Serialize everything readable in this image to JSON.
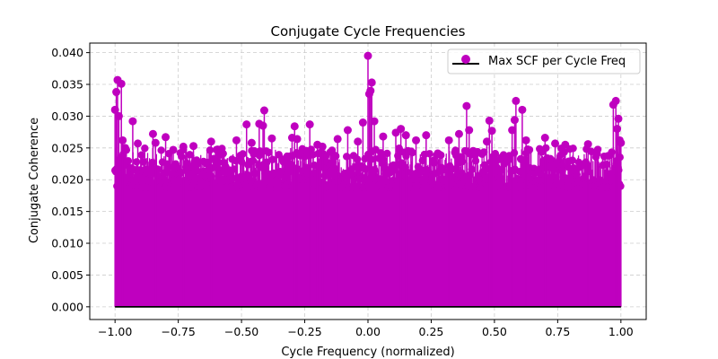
{
  "chart_data": {
    "type": "stem",
    "title": "Conjugate Cycle Frequencies",
    "xlabel": "Cycle Frequency (normalized)",
    "ylabel": "Conjugate Coherence",
    "xlim": [
      -1.1,
      1.1
    ],
    "ylim": [
      -0.002,
      0.0415
    ],
    "xticks": [
      -1.0,
      -0.75,
      -0.5,
      -0.25,
      0.0,
      0.25,
      0.5,
      0.75,
      1.0
    ],
    "xtick_labels": [
      "−1.00",
      "−0.75",
      "−0.50",
      "−0.25",
      "0.00",
      "0.25",
      "0.50",
      "0.75",
      "1.00"
    ],
    "yticks": [
      0.0,
      0.005,
      0.01,
      0.015,
      0.02,
      0.025,
      0.03,
      0.035,
      0.04
    ],
    "ytick_labels": [
      "0.000",
      "0.005",
      "0.010",
      "0.015",
      "0.020",
      "0.025",
      "0.030",
      "0.035",
      "0.040"
    ],
    "grid": true,
    "legend_position": "upper right",
    "series": [
      {
        "name": "Max SCF per Cycle Freq",
        "color": "#bf00bf",
        "baseline_color": "#000000",
        "density_note": "dense stems across full range, typical height 0.019–0.025",
        "peaks": [
          {
            "x": -1.0,
            "y": 0.031
          },
          {
            "x": -0.995,
            "y": 0.0338
          },
          {
            "x": -0.99,
            "y": 0.0357
          },
          {
            "x": -0.975,
            "y": 0.0351
          },
          {
            "x": -0.985,
            "y": 0.03
          },
          {
            "x": -0.97,
            "y": 0.0262
          },
          {
            "x": -0.96,
            "y": 0.025
          },
          {
            "x": -0.93,
            "y": 0.0292
          },
          {
            "x": -0.91,
            "y": 0.0257
          },
          {
            "x": -0.85,
            "y": 0.0272
          },
          {
            "x": -0.84,
            "y": 0.0258
          },
          {
            "x": -0.8,
            "y": 0.0267
          },
          {
            "x": -0.77,
            "y": 0.0247
          },
          {
            "x": -0.73,
            "y": 0.0252
          },
          {
            "x": -0.69,
            "y": 0.0253
          },
          {
            "x": -0.62,
            "y": 0.026
          },
          {
            "x": -0.59,
            "y": 0.0244
          },
          {
            "x": -0.52,
            "y": 0.0262
          },
          {
            "x": -0.48,
            "y": 0.0287
          },
          {
            "x": -0.46,
            "y": 0.0258
          },
          {
            "x": -0.43,
            "y": 0.0288
          },
          {
            "x": -0.415,
            "y": 0.0285
          },
          {
            "x": -0.41,
            "y": 0.0309
          },
          {
            "x": -0.38,
            "y": 0.0265
          },
          {
            "x": -0.3,
            "y": 0.0266
          },
          {
            "x": -0.29,
            "y": 0.0284
          },
          {
            "x": -0.28,
            "y": 0.0264
          },
          {
            "x": -0.23,
            "y": 0.0287
          },
          {
            "x": -0.2,
            "y": 0.0255
          },
          {
            "x": -0.18,
            "y": 0.0252
          },
          {
            "x": -0.12,
            "y": 0.0264
          },
          {
            "x": -0.08,
            "y": 0.0278
          },
          {
            "x": -0.04,
            "y": 0.026
          },
          {
            "x": -0.02,
            "y": 0.029
          },
          {
            "x": 0.0,
            "y": 0.0395
          },
          {
            "x": 0.005,
            "y": 0.0335
          },
          {
            "x": 0.01,
            "y": 0.034
          },
          {
            "x": 0.015,
            "y": 0.0353
          },
          {
            "x": 0.025,
            "y": 0.0292
          },
          {
            "x": 0.06,
            "y": 0.0268
          },
          {
            "x": 0.11,
            "y": 0.0274
          },
          {
            "x": 0.13,
            "y": 0.028
          },
          {
            "x": 0.15,
            "y": 0.027
          },
          {
            "x": 0.19,
            "y": 0.0262
          },
          {
            "x": 0.23,
            "y": 0.027
          },
          {
            "x": 0.32,
            "y": 0.0262
          },
          {
            "x": 0.36,
            "y": 0.0272
          },
          {
            "x": 0.39,
            "y": 0.0316
          },
          {
            "x": 0.4,
            "y": 0.0278
          },
          {
            "x": 0.47,
            "y": 0.026
          },
          {
            "x": 0.48,
            "y": 0.0293
          },
          {
            "x": 0.49,
            "y": 0.0277
          },
          {
            "x": 0.57,
            "y": 0.0278
          },
          {
            "x": 0.58,
            "y": 0.0294
          },
          {
            "x": 0.585,
            "y": 0.0324
          },
          {
            "x": 0.61,
            "y": 0.031
          },
          {
            "x": 0.625,
            "y": 0.0262
          },
          {
            "x": 0.7,
            "y": 0.0266
          },
          {
            "x": 0.74,
            "y": 0.0257
          },
          {
            "x": 0.78,
            "y": 0.0255
          },
          {
            "x": 0.87,
            "y": 0.0256
          },
          {
            "x": 0.97,
            "y": 0.0318
          },
          {
            "x": 0.98,
            "y": 0.0324
          },
          {
            "x": 0.99,
            "y": 0.0296
          },
          {
            "x": 0.985,
            "y": 0.028
          },
          {
            "x": 0.995,
            "y": 0.0262
          },
          {
            "x": 1.0,
            "y": 0.0258
          }
        ]
      }
    ]
  }
}
